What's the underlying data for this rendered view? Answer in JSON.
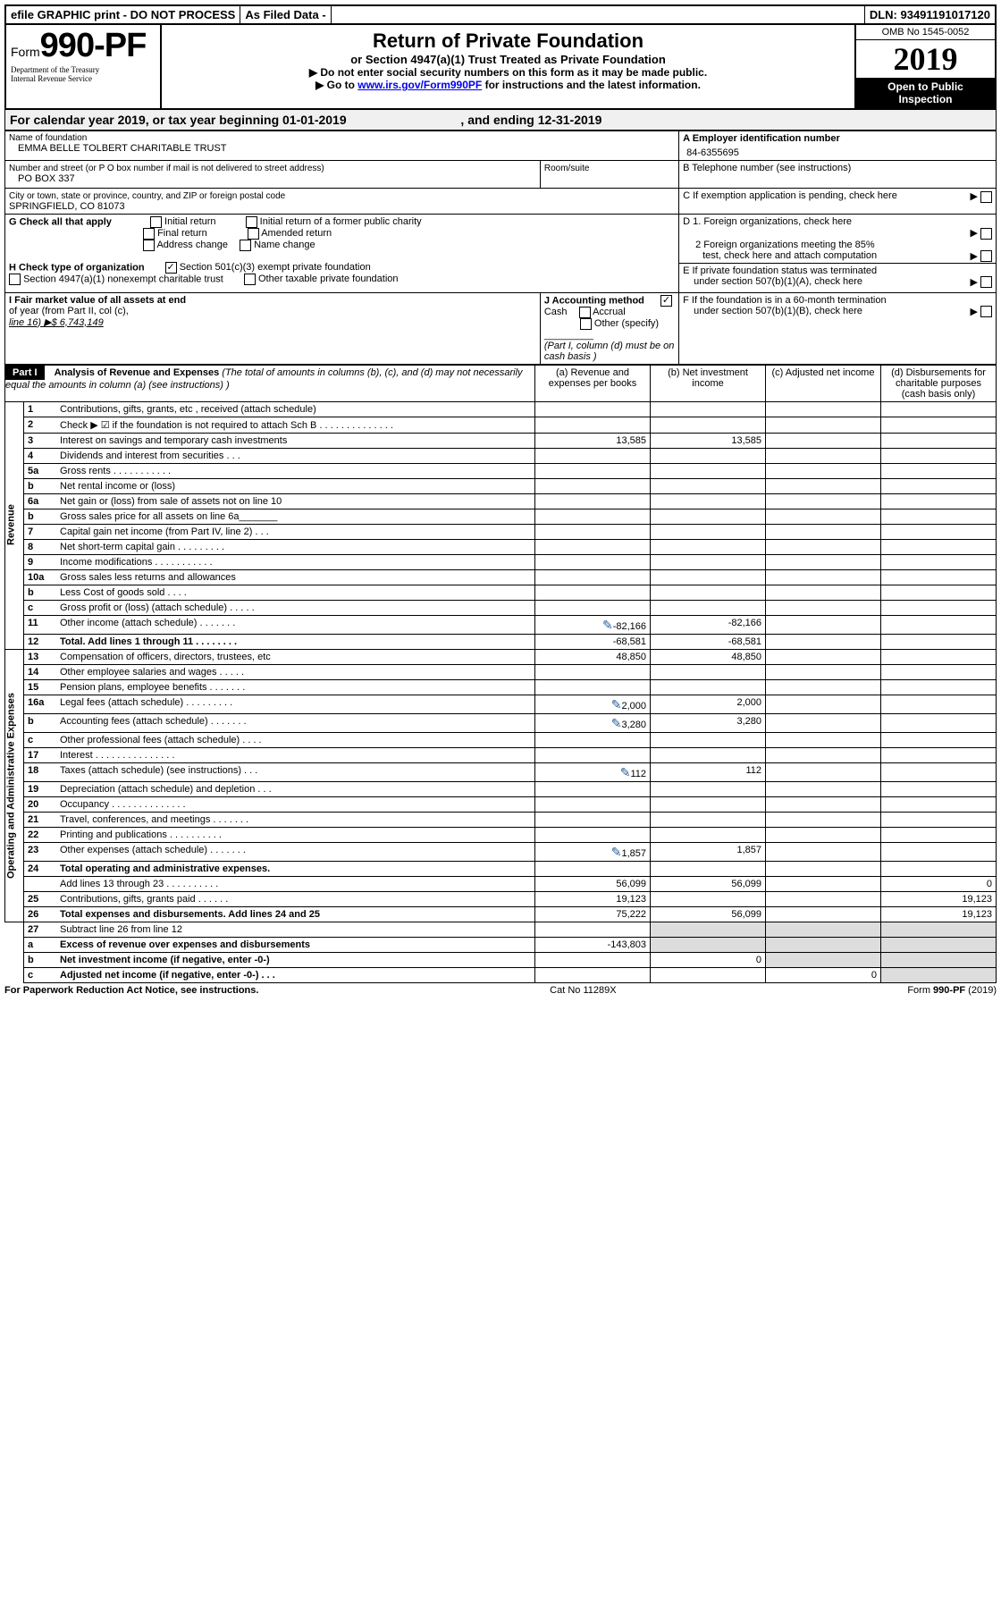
{
  "header": {
    "efile": "efile GRAPHIC print - DO NOT PROCESS",
    "asfiled": "As Filed Data -",
    "dln": "DLN: 93491191017120"
  },
  "formbox": {
    "form": "Form",
    "number": "990-PF",
    "dept1": "Department of the Treasury",
    "dept2": "Internal Revenue Service"
  },
  "titlebox": {
    "title": "Return of Private Foundation",
    "sub": "or Section 4947(a)(1) Trust Treated as Private Foundation",
    "instr1": "▶ Do not enter social security numbers on this form as it may be made public.",
    "instr2a": "▶ Go to ",
    "instr2_link": "www.irs.gov/Form990PF",
    "instr2b": " for instructions and the latest information."
  },
  "yearbox": {
    "omb": "OMB No 1545-0052",
    "year": "2019",
    "open1": "Open to Public",
    "open2": "Inspection"
  },
  "calyear": {
    "a": "For calendar year 2019, or tax year beginning 01-01-2019",
    "b": ", and ending 12-31-2019"
  },
  "entity": {
    "name_lbl": "Name of foundation",
    "name": "EMMA BELLE TOLBERT CHARITABLE TRUST",
    "addr_lbl": "Number and street (or P O  box number if mail is not delivered to street address)",
    "addr": "PO BOX 337",
    "room_lbl": "Room/suite",
    "city_lbl": "City or town, state or province, country, and ZIP or foreign postal code",
    "city": "SPRINGFIELD, CO  81073",
    "ein_lbl": "A Employer identification number",
    "ein": "84-6355695",
    "phone_lbl": "B Telephone number (see instructions)",
    "c_lbl": "C If exemption application is pending, check here"
  },
  "g": {
    "lbl": "G Check all that apply",
    "opts": [
      "Initial return",
      "Initial return of a former public charity",
      "Final return",
      "Amended return",
      "Address change",
      "Name change"
    ]
  },
  "h": {
    "lbl": "H Check type of organization",
    "opt1": "Section 501(c)(3) exempt private foundation",
    "opt2": "Section 4947(a)(1) nonexempt charitable trust",
    "opt3": "Other taxable private foundation"
  },
  "d": {
    "d1": "D 1. Foreign organizations, check here",
    "d2a": "2 Foreign organizations meeting the 85%",
    "d2b": "test, check here and attach computation"
  },
  "e": {
    "e1": "E  If private foundation status was terminated",
    "e2": "under section 507(b)(1)(A), check here"
  },
  "i": {
    "lbl1": "I Fair market value of all assets at end",
    "lbl2": "of year (from Part II, col  (c),",
    "lbl3": "line 16) ▶$  6,743,149"
  },
  "j": {
    "lbl": "J Accounting method",
    "cash": "Cash",
    "accrual": "Accrual",
    "other": "Other (specify)",
    "note": "(Part I, column (d) must be on cash basis )"
  },
  "f": {
    "f1": "F  If the foundation is in a 60-month termination",
    "f2": "under section 507(b)(1)(B), check here"
  },
  "part1": {
    "label": "Part I",
    "title": "Analysis of Revenue and Expenses",
    "title_note": " (The total of amounts in columns (b), (c), and (d) may not necessarily equal the amounts in column (a) (see instructions) )",
    "col_a": "(a)  Revenue and expenses per books",
    "col_b": "(b) Net investment income",
    "col_c": "(c) Adjusted net income",
    "col_d": "(d) Disbursements for charitable purposes (cash basis only)",
    "rev_label": "Revenue",
    "exp_label": "Operating and Administrative Expenses",
    "rows": [
      {
        "n": "1",
        "d": "Contributions, gifts, grants, etc , received (attach schedule)"
      },
      {
        "n": "2",
        "d": "Check ▶ ☑ if the foundation is not required to attach Sch  B    .  .  .  .  .  .  .  .  .  .  .  .  .  ."
      },
      {
        "n": "3",
        "d": "Interest on savings and temporary cash investments",
        "a": "13,585",
        "b": "13,585"
      },
      {
        "n": "4",
        "d": "Dividends and interest from securities     .  .  ."
      },
      {
        "n": "5a",
        "d": "Gross rents     .  .  .  .  .  .  .  .  .  .  ."
      },
      {
        "n": "b",
        "d": "Net rental income or (loss)  "
      },
      {
        "n": "6a",
        "d": "Net gain or (loss) from sale of assets not on line 10"
      },
      {
        "n": "b",
        "d": "Gross sales price for all assets on line 6a_______"
      },
      {
        "n": "7",
        "d": "Capital gain net income (from Part IV, line 2)   .  .  ."
      },
      {
        "n": "8",
        "d": "Net short-term capital gain  .  .  .  .  .  .  .  .  ."
      },
      {
        "n": "9",
        "d": "Income modifications .  .  .  .  .  .  .  .  .  .  ."
      },
      {
        "n": "10a",
        "d": "Gross sales less returns and allowances"
      },
      {
        "n": "b",
        "d": "Less  Cost of goods sold    .  .  .  ."
      },
      {
        "n": "c",
        "d": "Gross profit or (loss) (attach schedule)    .  .  .  .  ."
      },
      {
        "n": "11",
        "d": "Other income (attach schedule)    .  .  .  .  .  .  .",
        "a": "-82,166",
        "b": "-82,166",
        "icon": true
      },
      {
        "n": "12",
        "d": "Total. Add lines 1 through 11   .  .  .  .  .  .  .  .",
        "a": "-68,581",
        "b": "-68,581",
        "bold": true
      }
    ],
    "exp_rows": [
      {
        "n": "13",
        "d": "Compensation of officers, directors, trustees, etc",
        "a": "48,850",
        "b": "48,850"
      },
      {
        "n": "14",
        "d": "Other employee salaries and wages    .  .  .  .  ."
      },
      {
        "n": "15",
        "d": "Pension plans, employee benefits  .  .  .  .  .  .  ."
      },
      {
        "n": "16a",
        "d": "Legal fees (attach schedule) .  .  .  .  .  .  .  .  .",
        "a": "2,000",
        "b": "2,000",
        "icon": true
      },
      {
        "n": "b",
        "d": "Accounting fees (attach schedule) .  .  .  .  .  .  .",
        "a": "3,280",
        "b": "3,280",
        "icon": true
      },
      {
        "n": "c",
        "d": "Other professional fees (attach schedule)    .  .  .  ."
      },
      {
        "n": "17",
        "d": "Interest  .  .  .  .  .  .  .  .  .  .  .  .  .  .  ."
      },
      {
        "n": "18",
        "d": "Taxes (attach schedule) (see instructions)     .  .  .",
        "a": "112",
        "b": "112",
        "icon": true
      },
      {
        "n": "19",
        "d": "Depreciation (attach schedule) and depletion   .  .  ."
      },
      {
        "n": "20",
        "d": "Occupancy   .  .  .  .  .  .  .  .  .  .  .  .  .  ."
      },
      {
        "n": "21",
        "d": "Travel, conferences, and meetings .  .  .  .  .  .  ."
      },
      {
        "n": "22",
        "d": "Printing and publications .  .  .  .  .  .  .  .  .  ."
      },
      {
        "n": "23",
        "d": "Other expenses (attach schedule) .  .  .  .  .  .  .",
        "a": "1,857",
        "b": "1,857",
        "icon": true
      },
      {
        "n": "24",
        "d": "Total operating and administrative expenses.",
        "bold": true
      },
      {
        "n": "",
        "d": "Add lines 13 through 23   .  .  .  .  .  .  .  .  .  .",
        "a": "56,099",
        "b": "56,099",
        "dd": "0"
      },
      {
        "n": "25",
        "d": "Contributions, gifts, grants paid     .  .  .  .  .  .",
        "a": "19,123",
        "dd": "19,123"
      },
      {
        "n": "26",
        "d": "Total expenses and disbursements. Add lines 24 and 25",
        "a": "75,222",
        "b": "56,099",
        "dd": "19,123",
        "bold": true
      }
    ],
    "bottom_rows": [
      {
        "n": "27",
        "d": "Subtract line 26 from line 12"
      },
      {
        "n": "a",
        "d": "Excess of revenue over expenses and disbursements",
        "a": "-143,803",
        "bold": true
      },
      {
        "n": "b",
        "d": "Net investment income (if negative, enter -0-)",
        "b": "0",
        "bold": true
      },
      {
        "n": "c",
        "d": "Adjusted net income (if negative, enter -0-)   .  .  .",
        "c": "0",
        "bold": true
      }
    ]
  },
  "footer": {
    "left": "For Paperwork Reduction Act Notice, see instructions.",
    "mid": "Cat  No  11289X",
    "right": "Form 990-PF (2019)"
  }
}
